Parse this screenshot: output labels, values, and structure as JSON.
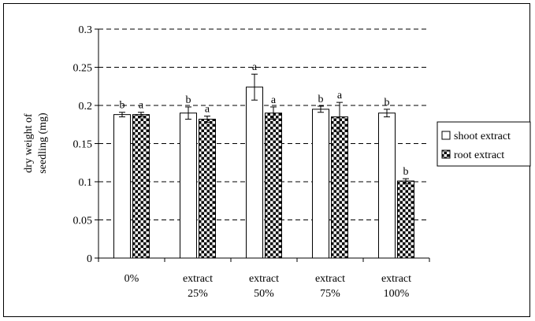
{
  "chart_data": {
    "type": "bar",
    "title": "",
    "xlabel": "",
    "ylabel_lines": [
      "dry weight of",
      "seedling (mg)"
    ],
    "ylim": [
      0,
      0.3
    ],
    "yticks": [
      0,
      0.05,
      0.1,
      0.15,
      0.2,
      0.25,
      0.3
    ],
    "ytick_labels": [
      "0",
      "0.05",
      "0.1",
      "0.15",
      "0.2",
      "0.25",
      "0.3"
    ],
    "grid": "horizontal dashed",
    "legend_position": "right",
    "categories": [
      [
        "0%"
      ],
      [
        "extract",
        "25%"
      ],
      [
        "extract",
        "50%"
      ],
      [
        "extract",
        "75%"
      ],
      [
        "extract",
        "100%"
      ]
    ],
    "series": [
      {
        "name": "shoot extract",
        "pattern": "white",
        "values": [
          0.188,
          0.19,
          0.224,
          0.195,
          0.19
        ],
        "errors": [
          0.003,
          0.008,
          0.017,
          0.004,
          0.005
        ],
        "letters": [
          "b",
          "b",
          "a",
          "b",
          "b"
        ]
      },
      {
        "name": "root extract",
        "pattern": "checkerboard",
        "values": [
          0.188,
          0.182,
          0.19,
          0.185,
          0.101
        ],
        "errors": [
          0.003,
          0.004,
          0.008,
          0.019,
          0.003
        ],
        "letters": [
          "a",
          "a",
          "a",
          "a",
          "b"
        ]
      }
    ],
    "colors": {
      "line": "#000000",
      "fill": "#ffffff"
    }
  }
}
